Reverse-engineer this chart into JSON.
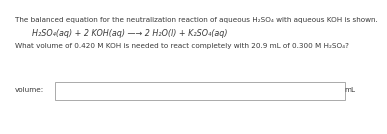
{
  "line1": "The balanced equation for the neutralization reaction of aqueous H₂SO₄ with aqueous KOH is shown.",
  "line2": "H₂SO₄(aq) + 2 KOH(aq) —→ 2 H₂O(l) + K₂SO₄(aq)",
  "line3": "What volume of 0.420 M KOH is needed to react completely with 20.9 mL of 0.300 M H₂SO₄?",
  "label_volume": "volume:",
  "label_ml": "mL",
  "bg_color": "#ffffff",
  "box_color": "#ffffff",
  "text_color": "#3a3a3a",
  "border_color": "#aaaaaa",
  "font_size_body": 5.2,
  "font_size_eq": 5.8,
  "font_size_label": 5.2
}
